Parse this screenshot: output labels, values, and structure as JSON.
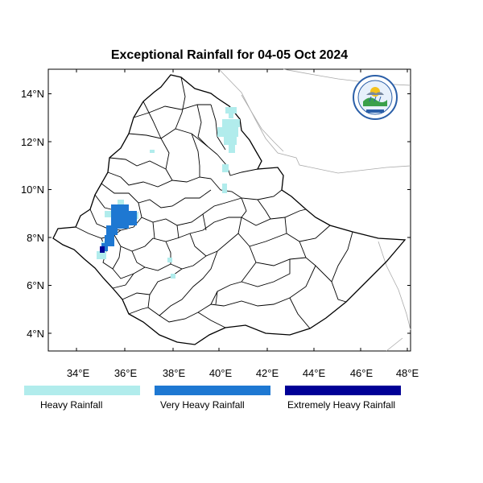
{
  "title": "Exceptional Rainfall for 04-05 Oct 2024",
  "axes": {
    "y_ticks": [
      "14°N",
      "12°N",
      "10°N",
      "8°N",
      "6°N",
      "4°N"
    ],
    "x_ticks": [
      "34°E",
      "36°E",
      "38°E",
      "40°E",
      "42°E",
      "44°E",
      "46°E",
      "48°E"
    ]
  },
  "legend": {
    "items": [
      {
        "label": "Heavy Rainfall",
        "color": "#b1ecec"
      },
      {
        "label": "Very Heavy Rainfall",
        "color": "#1e78d2"
      },
      {
        "label": "Extremely Heavy Rainfall",
        "color": "#000096"
      }
    ]
  },
  "logo": {
    "icon": "ethiopian-meteorology-institute-logo"
  }
}
